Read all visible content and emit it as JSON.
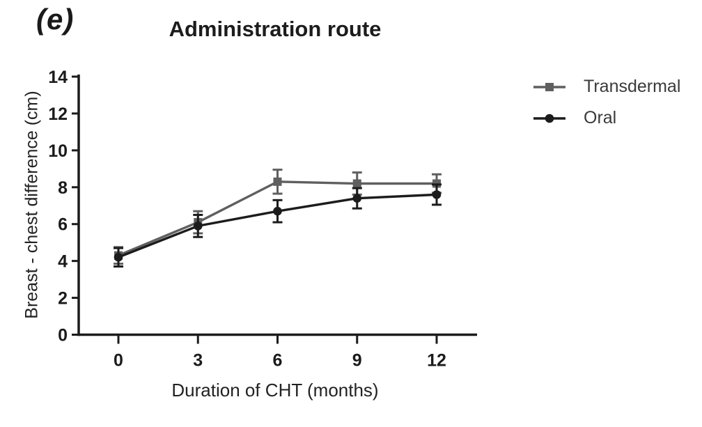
{
  "panel_label": "(e)",
  "title": "Administration route",
  "legend": {
    "position": "right",
    "items": [
      {
        "label": "Transdermal",
        "marker": "square",
        "color": "#5f5f5f"
      },
      {
        "label": "Oral",
        "marker": "circle",
        "color": "#1c1c1c"
      }
    ]
  },
  "chart_data": {
    "type": "line",
    "title": "Administration route",
    "xlabel": "Duration of CHT (months)",
    "ylabel": "Breast - chest difference (cm)",
    "x": [
      0,
      3,
      6,
      9,
      12
    ],
    "x_ticks": [
      "0",
      "3",
      "6",
      "9",
      "12"
    ],
    "y_ticks": [
      "0",
      "2",
      "4",
      "6",
      "8",
      "10",
      "12",
      "14"
    ],
    "xlim": [
      0,
      12
    ],
    "ylim": [
      0,
      14
    ],
    "grid": false,
    "error_bars": true,
    "legend_position": "right",
    "axis_color": "#1b1b1b",
    "series": [
      {
        "name": "Transdermal",
        "marker": "square",
        "color": "#5f5f5f",
        "values": [
          4.3,
          6.1,
          8.3,
          8.2,
          8.2
        ],
        "errors": [
          0.45,
          0.6,
          0.65,
          0.6,
          0.5
        ]
      },
      {
        "name": "Oral",
        "marker": "circle",
        "color": "#1c1c1c",
        "values": [
          4.2,
          5.9,
          6.7,
          7.4,
          7.6
        ],
        "errors": [
          0.5,
          0.6,
          0.6,
          0.55,
          0.55
        ]
      }
    ]
  }
}
